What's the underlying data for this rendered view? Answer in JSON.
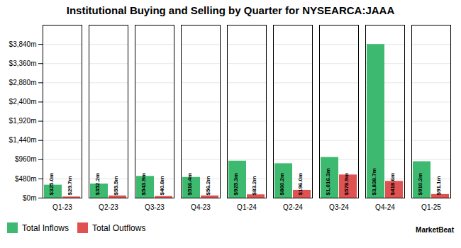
{
  "chart_data": {
    "type": "bar",
    "title": "Institutional Buying and Selling by Quarter for NYSEARCA:JAAA",
    "categories": [
      "Q1-23",
      "Q2-23",
      "Q3-23",
      "Q4-23",
      "Q1-24",
      "Q2-24",
      "Q3-24",
      "Q4-24",
      "Q1-25"
    ],
    "series": [
      {
        "name": "Total Inflows",
        "color": "#3dba6f",
        "values": [
          325.0,
          352.2,
          543.9,
          516.4,
          925.3,
          860.2,
          1016.3,
          3838.7,
          910.2
        ],
        "value_labels": [
          "$325.0m",
          "$352.2m",
          "$543.9m",
          "$516.4m",
          "$925.3m",
          "$860.2m",
          "$1,016.3m",
          "$3,838.7m",
          "$910.2m"
        ]
      },
      {
        "name": "Total Outflows",
        "color": "#e05252",
        "values": [
          29.7,
          55.5,
          40.8,
          56.2,
          83.2,
          196.0,
          578.9,
          418.6,
          91.1
        ],
        "value_labels": [
          "$29.7m",
          "$55.5m",
          "$40.8m",
          "$56.2m",
          "$83.2m",
          "$196.0m",
          "$578.9m",
          "$418.6m",
          "$91.1m"
        ]
      }
    ],
    "ylim": [
      0,
      4320
    ],
    "yticks": [
      {
        "value": 0,
        "label": "$0m"
      },
      {
        "value": 480,
        "label": "$480m"
      },
      {
        "value": 960,
        "label": "$960m"
      },
      {
        "value": 1440,
        "label": "$1,440m"
      },
      {
        "value": 1920,
        "label": "$1,920m"
      },
      {
        "value": 2400,
        "label": "$2,400m"
      },
      {
        "value": 2880,
        "label": "$2,880m"
      },
      {
        "value": 3360,
        "label": "$3,360m"
      },
      {
        "value": 3840,
        "label": "$3,840m"
      }
    ],
    "grid": true,
    "legend": "lower left",
    "data_labels": true,
    "annotations": [
      "MarketBeat"
    ]
  }
}
